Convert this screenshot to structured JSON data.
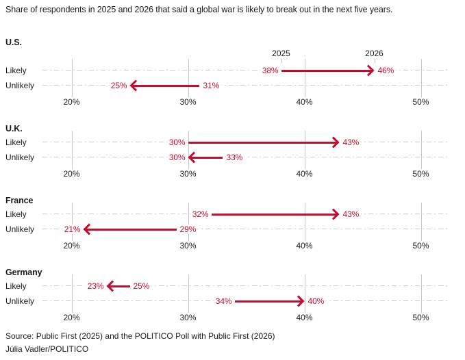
{
  "title": "Share of respondents in 2025 and 2026 that said a global war is likely to break out in the next five years.",
  "source": {
    "line1": "Source: Public First (2025) and the POLITICO Poll with Public First (2026)",
    "line2": "Júlia Vadler/POLITICO"
  },
  "colors": {
    "arrow": "#c30d2e",
    "gridline": "#c8c8c8",
    "dash_line": "#cbcbcb",
    "text": "#1a1a1a",
    "year_tick": "#b5b5b5"
  },
  "chart_data": {
    "type": "arrow-dumbbell",
    "unit": "%",
    "legend_position": "above-first-panel",
    "grid": true,
    "axis": {
      "min": 17.5,
      "max": 52.5,
      "ticks": [
        20,
        30,
        40,
        50
      ],
      "tick_suffix": "%"
    },
    "year_labels": {
      "from": "2025",
      "to": "2026"
    },
    "panels": [
      {
        "country": "U.S.",
        "show_year_labels": true,
        "rows": [
          {
            "label": "Likely",
            "from": 38,
            "to": 46
          },
          {
            "label": "Unlikely",
            "from": 31,
            "to": 25
          }
        ]
      },
      {
        "country": "U.K.",
        "show_year_labels": false,
        "rows": [
          {
            "label": "Likely",
            "from": 30,
            "to": 43
          },
          {
            "label": "Unlikely",
            "from": 33,
            "to": 30
          }
        ]
      },
      {
        "country": "France",
        "show_year_labels": false,
        "rows": [
          {
            "label": "Likely",
            "from": 32,
            "to": 43
          },
          {
            "label": "Unlikely",
            "from": 29,
            "to": 21
          }
        ]
      },
      {
        "country": "Germany",
        "show_year_labels": false,
        "rows": [
          {
            "label": "Likely",
            "from": 25,
            "to": 23
          },
          {
            "label": "Unlikely",
            "from": 34,
            "to": 40
          }
        ]
      }
    ]
  }
}
